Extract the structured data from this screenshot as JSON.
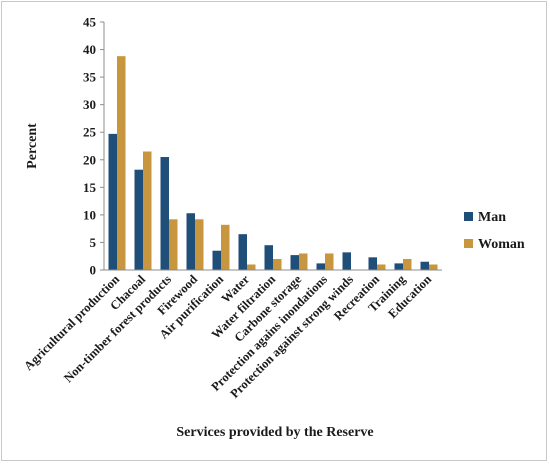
{
  "chart_data": {
    "type": "bar",
    "xlabel": "Services provided by the Reserve",
    "ylabel": "Percent",
    "ylim": [
      0,
      45
    ],
    "yticks": [
      0,
      5,
      10,
      15,
      20,
      25,
      30,
      35,
      40,
      45
    ],
    "grid": false,
    "legend_position": "right",
    "categories": [
      "Agricultural production",
      "Chacoal",
      "Non-timber forest products",
      "Firewood",
      "Air purification",
      "Water",
      "Water filtration",
      "Carbone storage",
      "Protection agains inondations",
      "Protection against strong winds",
      "Recreation",
      "Training",
      "Education"
    ],
    "series": [
      {
        "name": "Man",
        "color": "#1f4e79",
        "values": [
          24.7,
          18.2,
          20.5,
          10.3,
          3.5,
          6.5,
          4.5,
          2.7,
          1.2,
          3.2,
          2.3,
          1.2,
          1.5
        ]
      },
      {
        "name": "Woman",
        "color": "#c8963e",
        "values": [
          38.8,
          21.5,
          9.2,
          9.2,
          8.2,
          1.0,
          2.0,
          3.0,
          3.0,
          0,
          1.0,
          2.0,
          1.0
        ]
      }
    ]
  }
}
